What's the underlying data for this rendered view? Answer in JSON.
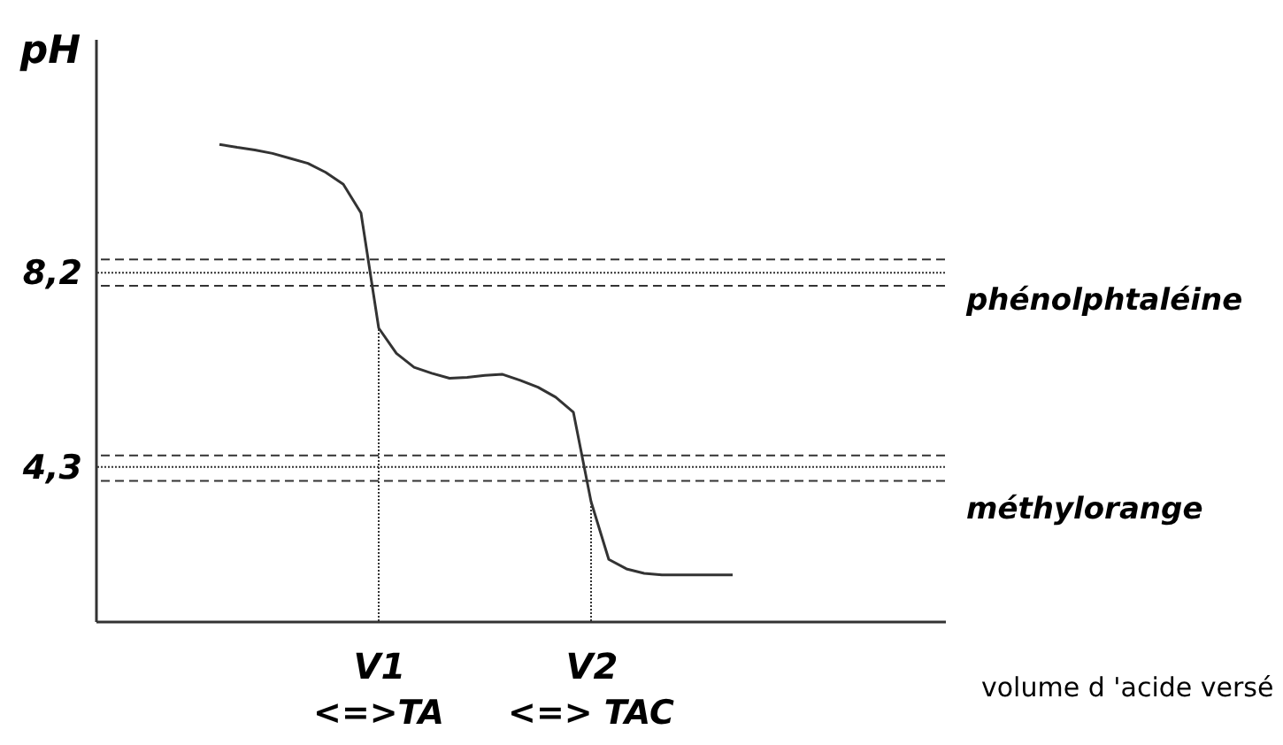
{
  "chart_data": {
    "type": "line",
    "xlabel": "volume d 'acide versé",
    "ylabel": "pH",
    "categories": [
      null,
      null,
      null,
      null,
      null,
      null,
      null,
      null,
      null,
      null,
      null,
      null,
      null,
      null,
      null,
      null,
      "V1",
      null,
      null,
      null,
      null,
      null,
      null,
      null,
      null,
      null,
      null,
      null,
      "V2",
      null,
      null,
      null,
      null,
      null,
      null,
      null,
      null,
      null,
      null,
      null,
      null,
      null,
      null,
      null,
      null,
      null,
      null,
      null,
      null
    ],
    "ylim": [
      1.2,
      12.9
    ],
    "yticks": [
      {
        "value": 8.2,
        "label": "8,2"
      },
      {
        "value": 4.3,
        "label": "4,3"
      }
    ],
    "marker": "none",
    "line_style": "solid",
    "series": [
      {
        "color": "#333333",
        "values": [
          null,
          null,
          null,
          null,
          null,
          null,
          null,
          10.78,
          10.72,
          10.67,
          10.6,
          10.5,
          10.4,
          10.22,
          9.98,
          9.4,
          7.09,
          6.58,
          6.3,
          6.18,
          6.08,
          6.1,
          6.14,
          6.16,
          6.04,
          5.9,
          5.7,
          5.4,
          3.6,
          2.44,
          2.25,
          2.16,
          2.13,
          2.13,
          2.13,
          2.13,
          2.13,
          null,
          null,
          null,
          null,
          null,
          null,
          null,
          null,
          null,
          null,
          null,
          null
        ]
      }
    ],
    "ref_lines": [
      {
        "axis": "y",
        "value": 8.47,
        "line_style": "dashed"
      },
      {
        "axis": "y",
        "value": 8.2,
        "line_style": "dotted",
        "label": "phénolphtaléine"
      },
      {
        "axis": "y",
        "value": 7.94,
        "line_style": "dashed"
      },
      {
        "axis": "y",
        "value": 4.53,
        "line_style": "dashed"
      },
      {
        "axis": "y",
        "value": 4.3,
        "line_style": "dotted",
        "label": "méthylorange"
      },
      {
        "axis": "y",
        "value": 4.02,
        "line_style": "dashed"
      },
      {
        "axis": "x",
        "value": "V1",
        "line_style": "dotted"
      },
      {
        "axis": "x",
        "value": "V2",
        "line_style": "dotted"
      }
    ],
    "annotations": [
      "<=>TA",
      "<=> TAC"
    ]
  }
}
